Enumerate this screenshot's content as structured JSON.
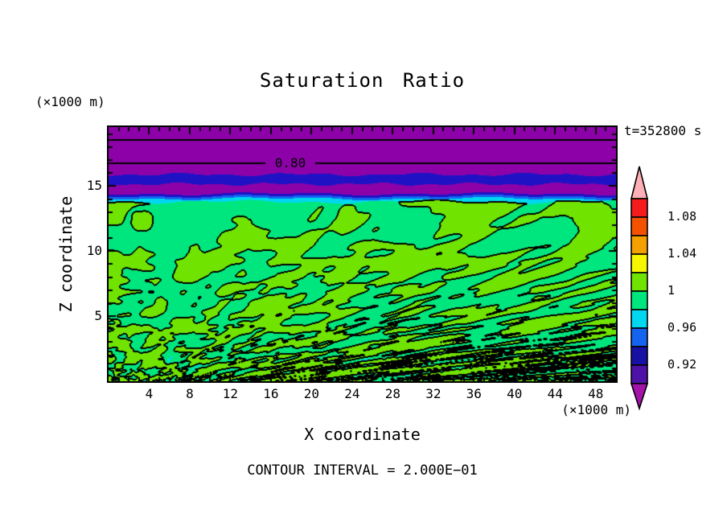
{
  "figure": {
    "background": "#FFFFFF",
    "text_color": "#000000",
    "title": "Saturation Ratio",
    "timestamp": "t=352800 s",
    "y_axis_unit": "(×1000 m)",
    "x_axis_unit": "(×1000 m)",
    "xlabel": "X coordinate",
    "ylabel": "Z coordinate",
    "footer": "CONTOUR INTERVAL = 2.000E−01",
    "contour_label": "0.80"
  },
  "chart_data": {
    "type": "heatmap",
    "title": "Saturation Ratio",
    "xlabel": "X coordinate",
    "ylabel": "Z coordinate",
    "axis_units": "×1000 m",
    "time_label": "t=352800 s",
    "time_seconds": 352800,
    "contour_interval": 0.2,
    "contour_interval_label": "CONTOUR INTERVAL = 2.000E−01",
    "xlim": [
      0,
      50
    ],
    "zlim": [
      0,
      19.5
    ],
    "x_ticks": [
      4,
      8,
      12,
      16,
      20,
      24,
      28,
      32,
      36,
      40,
      44,
      48
    ],
    "y_ticks": [
      5,
      10,
      15
    ],
    "minor_tick_step": 1,
    "colorbar": {
      "levels": [
        0.9,
        0.92,
        0.94,
        0.96,
        0.98,
        1.0,
        1.02,
        1.04,
        1.06,
        1.08,
        1.1
      ],
      "segment_colors_top_to_bottom": [
        "#F41C1C",
        "#F45200",
        "#F4A000",
        "#F6F600",
        "#70E400",
        "#00E67E",
        "#00D8F0",
        "#1464F0",
        "#1812A4",
        "#4E12A6"
      ],
      "over_color": "#FFB0B6",
      "under_color": "#A414AA",
      "outline_color": "#000000",
      "labels": [
        {
          "text": "1.08",
          "boundary_index": 1
        },
        {
          "text": "1.04",
          "boundary_index": 3
        },
        {
          "text": "1",
          "boundary_index": 5
        },
        {
          "text": "0.96",
          "boundary_index": 7
        },
        {
          "text": "0.92",
          "boundary_index": 9
        }
      ]
    },
    "field_colors": {
      "purple": "#8C02A8",
      "navy": "#2012C4",
      "blue": "#1464F0",
      "cyan": "#00D8F0",
      "spring_green": "#00E67E",
      "chartreuse": "#70E400",
      "yellow": "#F2F200",
      "contour": "#000000"
    },
    "contour_lines": [
      {
        "value": 0.6,
        "z": 18.6
      },
      {
        "value": 0.8,
        "z": 16.8,
        "label": "0.80",
        "label_x_km": 18
      }
    ],
    "field_layers": [
      {
        "z_range": [
          15.9,
          19.5
        ],
        "saturation": "< 0.90",
        "appearance": "uniform purple region, saturation decreasing upward, contour lines at 0.6 and 0.8"
      },
      {
        "z_range": [
          15.2,
          15.9
        ],
        "saturation": "0.92–0.94",
        "appearance": "dark navy horizontal band with ragged edges"
      },
      {
        "z_range": [
          14.4,
          15.2
        ],
        "saturation": "< 0.90",
        "appearance": "purple"
      },
      {
        "z_range": [
          13.8,
          14.4
        ],
        "saturation": "0.90–0.98",
        "appearance": "thin navy, blue and cyan transition strips"
      },
      {
        "z_range": [
          0,
          13.8
        ],
        "saturation": "0.98–1.02",
        "appearance": "turbulent mottled spring-green / chartreuse field; 1.00 contour outlines blobs in black; features become fine vertical streaks toward the ground; sparse yellow and cyan specks near bottom"
      }
    ]
  }
}
